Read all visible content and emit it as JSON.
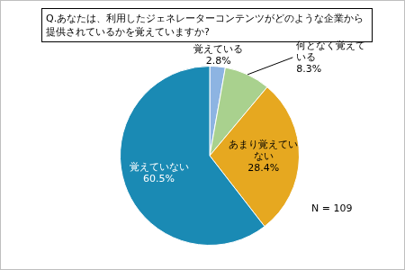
{
  "chart_data": {
    "type": "pie",
    "title": "Q.あなたは、利用したジェネレーターコンテンツがどのような企業から提供されているかを覚えていますか?",
    "categories": [
      "覚えている",
      "何となく覚えている",
      "あまり覚えていない",
      "覚えていない"
    ],
    "values": [
      2.8,
      8.3,
      28.4,
      60.5
    ],
    "value_labels": [
      "2.8%",
      "8.3%",
      "28.4%",
      "60.5%"
    ],
    "colors": [
      "#8db4e2",
      "#a9d18e",
      "#e6a820",
      "#1a8ab4"
    ],
    "annotations": [
      "N = 109"
    ],
    "data_labels": true,
    "legend": false
  }
}
